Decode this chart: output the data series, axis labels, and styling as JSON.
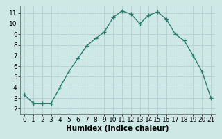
{
  "x": [
    0,
    1,
    2,
    3,
    4,
    5,
    6,
    7,
    8,
    9,
    10,
    11,
    12,
    13,
    14,
    15,
    16,
    17,
    18,
    19,
    20,
    21
  ],
  "y": [
    3.3,
    2.5,
    2.5,
    2.5,
    4.0,
    5.5,
    6.7,
    7.9,
    8.6,
    9.2,
    10.6,
    11.2,
    10.9,
    10.0,
    10.8,
    11.1,
    10.4,
    9.0,
    8.4,
    7.0,
    5.5,
    3.0
  ],
  "line_color": "#2d7d6e",
  "marker": "+",
  "marker_size": 4,
  "marker_linewidth": 1.0,
  "line_width": 1.0,
  "bg_color": "#cde8e5",
  "grid_color": "#b0cecc",
  "xlabel": "Humidex (Indice chaleur)",
  "xlim": [
    -0.5,
    21.5
  ],
  "ylim": [
    1.5,
    11.7
  ],
  "xticks": [
    0,
    1,
    2,
    3,
    4,
    5,
    6,
    7,
    8,
    9,
    10,
    11,
    12,
    13,
    14,
    15,
    16,
    17,
    18,
    19,
    20,
    21
  ],
  "yticks": [
    2,
    3,
    4,
    5,
    6,
    7,
    8,
    9,
    10,
    11
  ],
  "tick_fontsize": 6.5,
  "xlabel_fontsize": 7.5
}
